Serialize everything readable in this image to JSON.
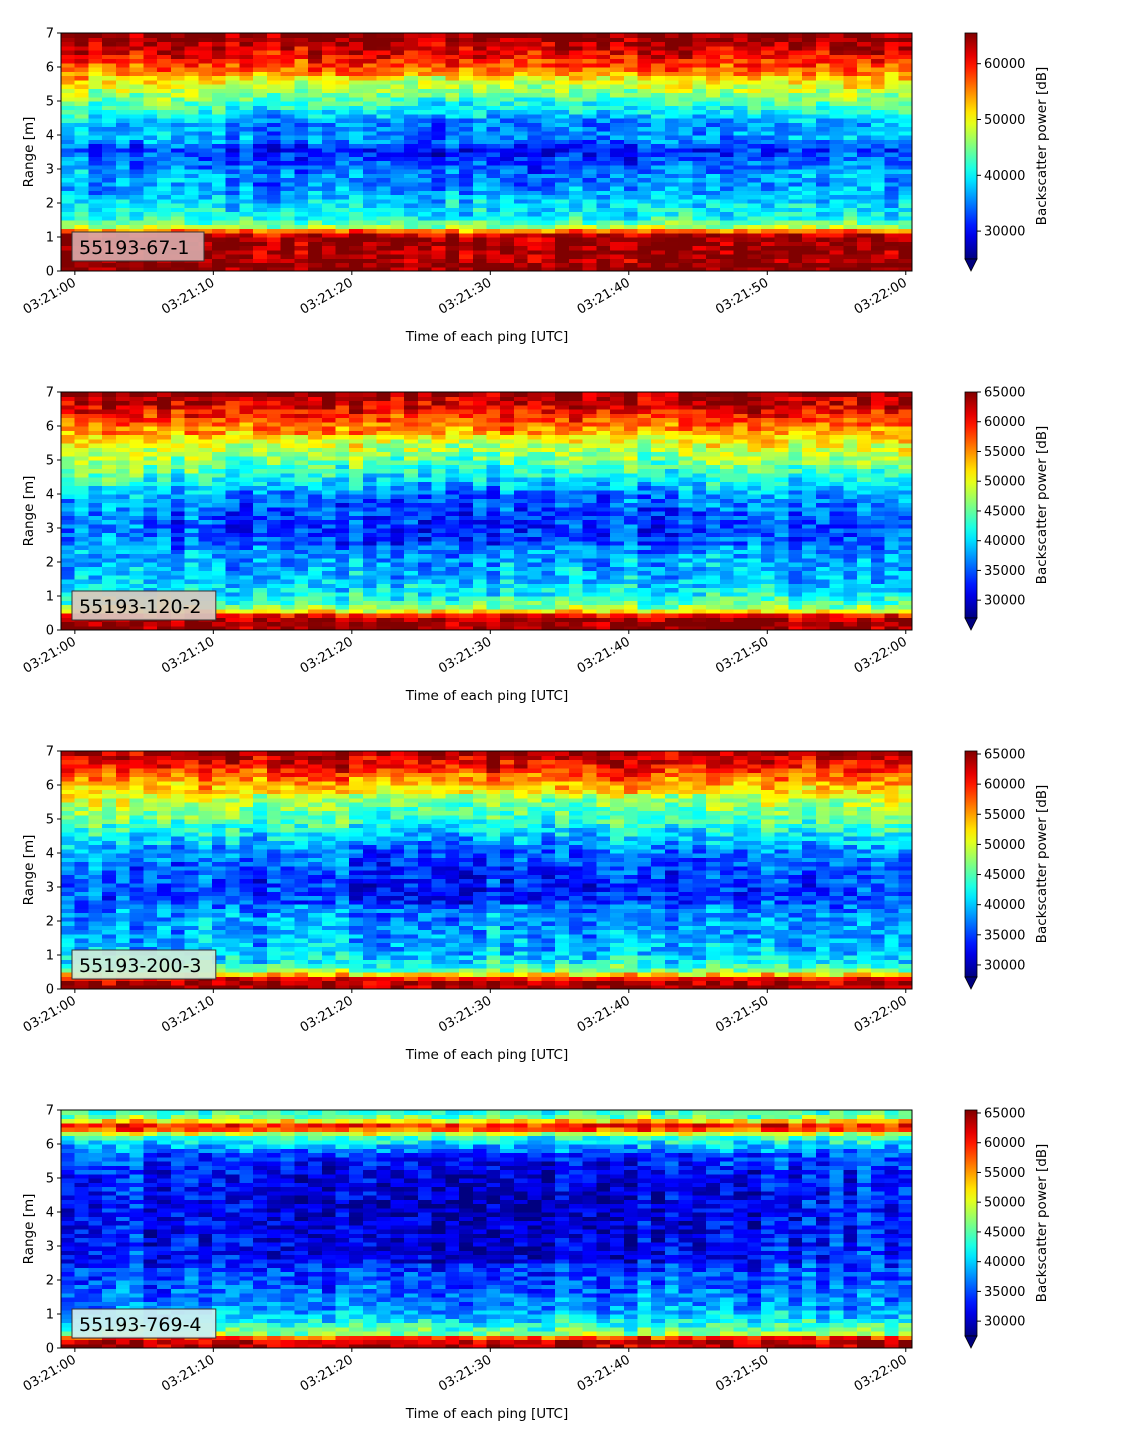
{
  "figure": {
    "xlabel": "Time of each ping [UTC]",
    "ylabel": "Range [m]",
    "colorbar_label": "Backscatter power [dB]",
    "colormap": "jet",
    "x_ticks": [
      "03:21:00",
      "03:21:10",
      "03:21:20",
      "03:21:30",
      "03:21:40",
      "03:21:50",
      "03:22:00"
    ],
    "y_ticks": [
      "0",
      "1",
      "2",
      "3",
      "4",
      "5",
      "6",
      "7"
    ]
  },
  "chart_data": [
    {
      "type": "heatmap",
      "label": "55193-67-1",
      "label_color": "#d9a8a8",
      "x_range": [
        "03:20:59",
        "03:22:00"
      ],
      "ylim": [
        0,
        7
      ],
      "clim": [
        25000,
        65500
      ],
      "cbar_ticks": [
        30000,
        40000,
        50000,
        60000
      ],
      "cbar_tick_labels": [
        "30000",
        "40000",
        "50000",
        "60000"
      ],
      "profile": [
        [
          0.0,
          65500
        ],
        [
          0.15,
          65500
        ],
        [
          0.3,
          64000
        ],
        [
          0.9,
          64500
        ],
        [
          1.1,
          62000
        ],
        [
          1.3,
          47000
        ],
        [
          1.6,
          40000
        ],
        [
          2.0,
          39000
        ],
        [
          2.4,
          36000
        ],
        [
          2.8,
          38000
        ],
        [
          3.2,
          35000
        ],
        [
          3.6,
          33000
        ],
        [
          3.9,
          38000
        ],
        [
          4.3,
          37000
        ],
        [
          4.7,
          42000
        ],
        [
          5.2,
          47000
        ],
        [
          5.6,
          52000
        ],
        [
          6.0,
          57000
        ],
        [
          6.4,
          61000
        ],
        [
          6.8,
          64000
        ],
        [
          7.0,
          65500
        ]
      ]
    },
    {
      "type": "heatmap",
      "label": "55193-120-2",
      "label_color": "#d9c8c0",
      "x_range": [
        "03:20:59",
        "03:22:00"
      ],
      "ylim": [
        0,
        7
      ],
      "clim": [
        27000,
        65000
      ],
      "cbar_ticks": [
        30000,
        35000,
        40000,
        45000,
        50000,
        55000,
        60000,
        65000
      ],
      "cbar_tick_labels": [
        "30000",
        "35000",
        "40000",
        "45000",
        "50000",
        "55000",
        "60000",
        "65000"
      ],
      "profile": [
        [
          0.0,
          65000
        ],
        [
          0.2,
          64500
        ],
        [
          0.4,
          63000
        ],
        [
          0.55,
          52000
        ],
        [
          0.7,
          46000
        ],
        [
          1.0,
          42000
        ],
        [
          1.5,
          39000
        ],
        [
          2.0,
          38000
        ],
        [
          2.5,
          37000
        ],
        [
          3.0,
          36000
        ],
        [
          3.5,
          37000
        ],
        [
          4.0,
          39000
        ],
        [
          4.5,
          44000
        ],
        [
          5.0,
          48000
        ],
        [
          5.5,
          52000
        ],
        [
          6.0,
          56000
        ],
        [
          6.5,
          61000
        ],
        [
          7.0,
          64500
        ]
      ]
    },
    {
      "type": "heatmap",
      "label": "55193-200-3",
      "label_color": "#d0ecd8",
      "x_range": [
        "03:20:59",
        "03:22:00"
      ],
      "ylim": [
        0,
        7
      ],
      "clim": [
        28000,
        65500
      ],
      "cbar_ticks": [
        30000,
        35000,
        40000,
        45000,
        50000,
        55000,
        60000,
        65000
      ],
      "cbar_tick_labels": [
        "30000",
        "35000",
        "40000",
        "45000",
        "50000",
        "55000",
        "60000",
        "65000"
      ],
      "profile": [
        [
          0.0,
          65000
        ],
        [
          0.2,
          64000
        ],
        [
          0.35,
          60000
        ],
        [
          0.5,
          48000
        ],
        [
          0.8,
          42000
        ],
        [
          1.2,
          39500
        ],
        [
          2.0,
          38500
        ],
        [
          2.6,
          37000
        ],
        [
          3.0,
          36500
        ],
        [
          3.5,
          37500
        ],
        [
          4.0,
          39000
        ],
        [
          4.5,
          43000
        ],
        [
          5.0,
          47000
        ],
        [
          5.5,
          50000
        ],
        [
          6.0,
          54000
        ],
        [
          6.5,
          60000
        ],
        [
          7.0,
          64500
        ]
      ]
    },
    {
      "type": "heatmap",
      "label": "55193-769-4",
      "label_color": "#d0eef0",
      "x_range": [
        "03:20:59",
        "03:22:00"
      ],
      "ylim": [
        0,
        7
      ],
      "clim": [
        27500,
        65500
      ],
      "cbar_ticks": [
        30000,
        35000,
        40000,
        45000,
        50000,
        55000,
        60000,
        65000
      ],
      "cbar_tick_labels": [
        "30000",
        "35000",
        "40000",
        "45000",
        "50000",
        "55000",
        "60000",
        "65000"
      ],
      "profile": [
        [
          0.0,
          64000
        ],
        [
          0.15,
          64500
        ],
        [
          0.3,
          60000
        ],
        [
          0.45,
          47000
        ],
        [
          0.8,
          42000
        ],
        [
          1.2,
          38000
        ],
        [
          2.0,
          35500
        ],
        [
          3.0,
          34000
        ],
        [
          4.0,
          33500
        ],
        [
          5.0,
          34000
        ],
        [
          5.8,
          37000
        ],
        [
          6.2,
          44000
        ],
        [
          6.45,
          58000
        ],
        [
          6.6,
          61000
        ],
        [
          6.75,
          47000
        ],
        [
          7.0,
          44000
        ]
      ]
    }
  ]
}
